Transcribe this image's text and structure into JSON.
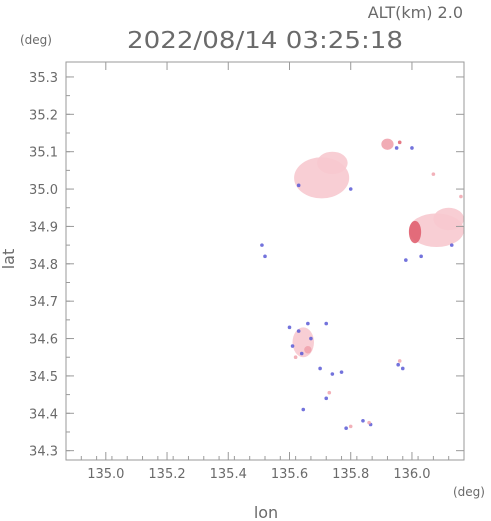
{
  "header": {
    "altitude": "ALT(km) 2.0",
    "datetime": "2022/08/14 03:25:18"
  },
  "chart_data": {
    "type": "heatmap",
    "xlabel": "lon",
    "ylabel": "lat",
    "x_unit": "(deg)",
    "y_unit": "(deg)",
    "xlim": [
      134.87,
      136.17
    ],
    "ylim": [
      34.275,
      35.34
    ],
    "x_ticks": [
      {
        "value": 135.0,
        "label": "135.0"
      },
      {
        "value": 135.2,
        "label": "135.2"
      },
      {
        "value": 135.4,
        "label": "135.4"
      },
      {
        "value": 135.6,
        "label": "135.6"
      },
      {
        "value": 135.8,
        "label": "135.8"
      },
      {
        "value": 136.0,
        "label": "136.0"
      }
    ],
    "y_ticks": [
      {
        "value": 34.3,
        "label": "34.3"
      },
      {
        "value": 34.4,
        "label": "34.4"
      },
      {
        "value": 34.5,
        "label": "34.5"
      },
      {
        "value": 34.6,
        "label": "34.6"
      },
      {
        "value": 34.7,
        "label": "34.7"
      },
      {
        "value": 34.8,
        "label": "34.8"
      },
      {
        "value": 34.9,
        "label": "34.9"
      },
      {
        "value": 35.0,
        "label": "35.0"
      },
      {
        "value": 35.1,
        "label": "35.1"
      },
      {
        "value": 35.2,
        "label": "35.2"
      },
      {
        "value": 35.3,
        "label": "35.3"
      }
    ],
    "grid": false,
    "colors": {
      "light_pink": "#f7c9cf",
      "pink": "#f0a3ad",
      "red": "#e06070",
      "blue": "#5b5bd6",
      "frame": "#9a9a9a"
    },
    "echo_regions": [
      {
        "lon": 135.705,
        "lat": 35.03,
        "rx": 0.09,
        "ry": 0.055,
        "color": "light_pink"
      },
      {
        "lon": 135.74,
        "lat": 35.07,
        "rx": 0.05,
        "ry": 0.03,
        "color": "light_pink"
      },
      {
        "lon": 136.08,
        "lat": 34.89,
        "rx": 0.09,
        "ry": 0.045,
        "color": "light_pink"
      },
      {
        "lon": 136.12,
        "lat": 34.92,
        "rx": 0.05,
        "ry": 0.03,
        "color": "light_pink"
      },
      {
        "lon": 136.01,
        "lat": 34.885,
        "rx": 0.02,
        "ry": 0.03,
        "color": "red"
      },
      {
        "lon": 135.92,
        "lat": 35.12,
        "rx": 0.02,
        "ry": 0.015,
        "color": "pink"
      },
      {
        "lon": 135.645,
        "lat": 34.59,
        "rx": 0.035,
        "ry": 0.04,
        "color": "light_pink"
      },
      {
        "lon": 135.66,
        "lat": 34.57,
        "rx": 0.012,
        "ry": 0.01,
        "color": "pink"
      }
    ],
    "echo_speckles": [
      {
        "lon": 135.6,
        "lat": 34.63,
        "color": "blue"
      },
      {
        "lon": 135.63,
        "lat": 34.62,
        "color": "blue"
      },
      {
        "lon": 135.61,
        "lat": 34.58,
        "color": "blue"
      },
      {
        "lon": 135.64,
        "lat": 34.56,
        "color": "blue"
      },
      {
        "lon": 135.67,
        "lat": 34.6,
        "color": "blue"
      },
      {
        "lon": 135.62,
        "lat": 34.55,
        "color": "pink"
      },
      {
        "lon": 135.66,
        "lat": 34.64,
        "color": "blue"
      },
      {
        "lon": 135.72,
        "lat": 34.64,
        "color": "blue"
      },
      {
        "lon": 135.7,
        "lat": 34.52,
        "color": "blue"
      },
      {
        "lon": 135.74,
        "lat": 34.505,
        "color": "blue"
      },
      {
        "lon": 135.77,
        "lat": 34.51,
        "color": "blue"
      },
      {
        "lon": 135.72,
        "lat": 34.44,
        "color": "blue"
      },
      {
        "lon": 135.73,
        "lat": 34.455,
        "color": "pink"
      },
      {
        "lon": 135.645,
        "lat": 34.41,
        "color": "blue"
      },
      {
        "lon": 135.785,
        "lat": 34.36,
        "color": "blue"
      },
      {
        "lon": 135.8,
        "lat": 34.365,
        "color": "pink"
      },
      {
        "lon": 135.84,
        "lat": 34.38,
        "color": "blue"
      },
      {
        "lon": 135.865,
        "lat": 34.37,
        "color": "blue"
      },
      {
        "lon": 135.86,
        "lat": 34.375,
        "color": "pink"
      },
      {
        "lon": 135.955,
        "lat": 34.53,
        "color": "blue"
      },
      {
        "lon": 135.97,
        "lat": 34.52,
        "color": "blue"
      },
      {
        "lon": 135.96,
        "lat": 34.54,
        "color": "pink"
      },
      {
        "lon": 135.52,
        "lat": 34.82,
        "color": "blue"
      },
      {
        "lon": 135.51,
        "lat": 34.85,
        "color": "blue"
      },
      {
        "lon": 135.95,
        "lat": 35.11,
        "color": "blue"
      },
      {
        "lon": 135.96,
        "lat": 35.125,
        "color": "red"
      },
      {
        "lon": 136.0,
        "lat": 35.11,
        "color": "blue"
      },
      {
        "lon": 136.07,
        "lat": 35.04,
        "color": "pink"
      },
      {
        "lon": 136.16,
        "lat": 34.98,
        "color": "pink"
      },
      {
        "lon": 135.98,
        "lat": 34.81,
        "color": "blue"
      },
      {
        "lon": 136.03,
        "lat": 34.82,
        "color": "blue"
      },
      {
        "lon": 136.13,
        "lat": 34.85,
        "color": "blue"
      },
      {
        "lon": 135.63,
        "lat": 35.01,
        "color": "blue"
      },
      {
        "lon": 135.8,
        "lat": 35.0,
        "color": "blue"
      }
    ]
  }
}
